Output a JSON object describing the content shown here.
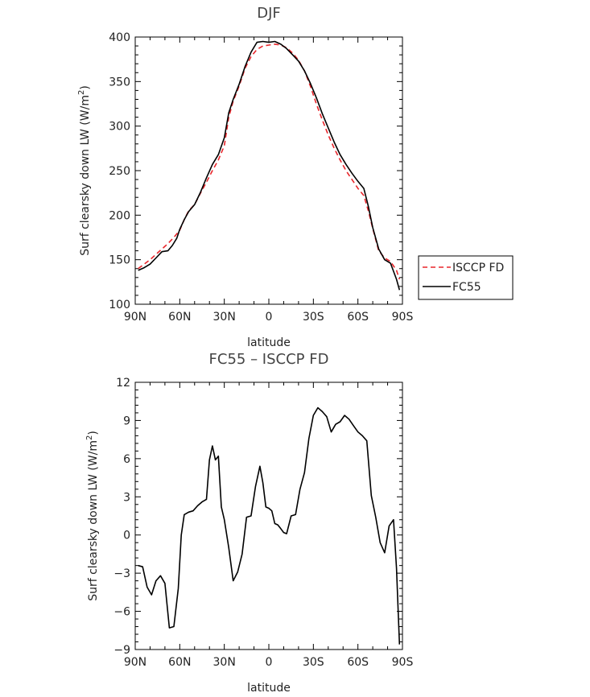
{
  "chart_data": [
    {
      "type": "line",
      "title": "DJF",
      "xlabel": "latitude",
      "ylabel": "Surf clearsky down LW (W/m²)",
      "ylabel_parts": {
        "main": "Surf clearsky down LW (W/m",
        "sup": "2",
        "close": ")"
      },
      "xlim": [
        -90,
        90
      ],
      "ylim": [
        100,
        400
      ],
      "xticks": [
        -90,
        -60,
        -30,
        0,
        30,
        60,
        90
      ],
      "xtick_labels": [
        "90N",
        "60N",
        "30N",
        "0",
        "30S",
        "60S",
        "90S"
      ],
      "yticks": [
        100,
        150,
        200,
        250,
        300,
        350,
        400
      ],
      "ytick_labels": [
        "100",
        "150",
        "200",
        "250",
        "300",
        "350",
        "400"
      ],
      "legend_position": "right",
      "series": [
        {
          "name": "ISCCP FD",
          "color": "#e8262b",
          "dash": "6,4",
          "x": [
            -88,
            -84,
            -80,
            -76,
            -72,
            -68,
            -64,
            -60,
            -57,
            -54,
            -50,
            -46,
            -42,
            -38,
            -34,
            -30,
            -27,
            -24,
            -20,
            -16,
            -12,
            -8,
            -4,
            0,
            4,
            8,
            12,
            16,
            20,
            24,
            28,
            32,
            36,
            40,
            44,
            48,
            52,
            56,
            60,
            64,
            67,
            70,
            74,
            78,
            82,
            86,
            88
          ],
          "y": [
            140,
            145,
            150,
            156,
            162,
            168,
            175,
            183,
            195,
            205,
            212,
            225,
            237,
            250,
            262,
            278,
            310,
            328,
            345,
            365,
            378,
            386,
            390,
            391,
            392,
            391,
            388,
            382,
            374,
            362,
            345,
            325,
            307,
            290,
            275,
            262,
            250,
            240,
            230,
            222,
            205,
            185,
            160,
            152,
            148,
            138,
            128
          ]
        },
        {
          "name": "FC55",
          "color": "#000000",
          "dash": "",
          "x": [
            -88,
            -84,
            -80,
            -76,
            -72,
            -68,
            -65,
            -62,
            -60,
            -57,
            -54,
            -50,
            -46,
            -42,
            -38,
            -34,
            -30,
            -27,
            -24,
            -20,
            -16,
            -12,
            -8,
            -4,
            0,
            4,
            8,
            12,
            16,
            20,
            24,
            28,
            32,
            36,
            40,
            44,
            48,
            52,
            56,
            60,
            64,
            67,
            70,
            74,
            78,
            82,
            86,
            88
          ],
          "y": [
            138,
            141,
            145,
            152,
            159,
            160,
            166,
            174,
            184,
            195,
            204,
            212,
            226,
            242,
            257,
            268,
            287,
            315,
            330,
            347,
            367,
            383,
            394,
            395,
            394,
            395,
            392,
            387,
            380,
            373,
            362,
            348,
            332,
            314,
            298,
            282,
            268,
            257,
            247,
            238,
            230,
            210,
            186,
            162,
            150,
            146,
            128,
            116
          ]
        }
      ]
    },
    {
      "type": "line",
      "title": "FC55 – ISCCP FD",
      "xlabel": "latitude",
      "ylabel": "Surf clearsky down LW (W/m²)",
      "ylabel_parts": {
        "main": "Surf clearsky down LW (W/m",
        "sup": "2",
        "close": ")"
      },
      "xlim": [
        -90,
        90
      ],
      "ylim": [
        -9,
        12
      ],
      "xticks": [
        -90,
        -60,
        -30,
        0,
        30,
        60,
        90
      ],
      "xtick_labels": [
        "90N",
        "60N",
        "30N",
        "0",
        "30S",
        "60S",
        "90S"
      ],
      "yticks": [
        -9,
        -6,
        -3,
        0,
        3,
        6,
        9,
        12
      ],
      "ytick_labels": [
        "−9",
        "−6",
        "−3",
        "0",
        "3",
        "6",
        "9",
        "12"
      ],
      "series": [
        {
          "name": "",
          "color": "#000000",
          "dash": "",
          "x": [
            -88,
            -85,
            -82,
            -79,
            -76,
            -73,
            -70,
            -67,
            -64,
            -61,
            -59,
            -57,
            -54,
            -51,
            -48,
            -45,
            -42,
            -40,
            -38,
            -36,
            -34,
            -32,
            -30,
            -27,
            -24,
            -21,
            -18,
            -15,
            -12,
            -9,
            -6,
            -4,
            -2,
            0,
            2,
            4,
            6,
            8,
            10,
            12,
            15,
            18,
            21,
            24,
            27,
            30,
            33,
            36,
            39,
            42,
            45,
            48,
            51,
            54,
            57,
            60,
            63,
            66,
            69,
            72,
            75,
            78,
            81,
            84,
            86,
            88
          ],
          "y": [
            -2.4,
            -2.5,
            -4.1,
            -4.7,
            -3.6,
            -3.2,
            -3.8,
            -7.3,
            -7.2,
            -4.2,
            0.0,
            1.6,
            1.8,
            1.9,
            2.3,
            2.6,
            2.8,
            5.9,
            7.0,
            5.9,
            6.2,
            2.2,
            1.2,
            -1.0,
            -3.6,
            -2.9,
            -1.5,
            1.4,
            1.5,
            3.8,
            5.4,
            4.1,
            2.2,
            2.1,
            1.9,
            0.9,
            0.8,
            0.5,
            0.2,
            0.1,
            1.5,
            1.6,
            3.6,
            4.9,
            7.6,
            9.4,
            10.0,
            9.7,
            9.3,
            8.1,
            8.7,
            8.9,
            9.4,
            9.1,
            8.6,
            8.1,
            7.8,
            7.4,
            3.1,
            1.4,
            -0.6,
            -1.4,
            0.7,
            1.2,
            -2.6,
            -8.6
          ]
        }
      ]
    }
  ]
}
